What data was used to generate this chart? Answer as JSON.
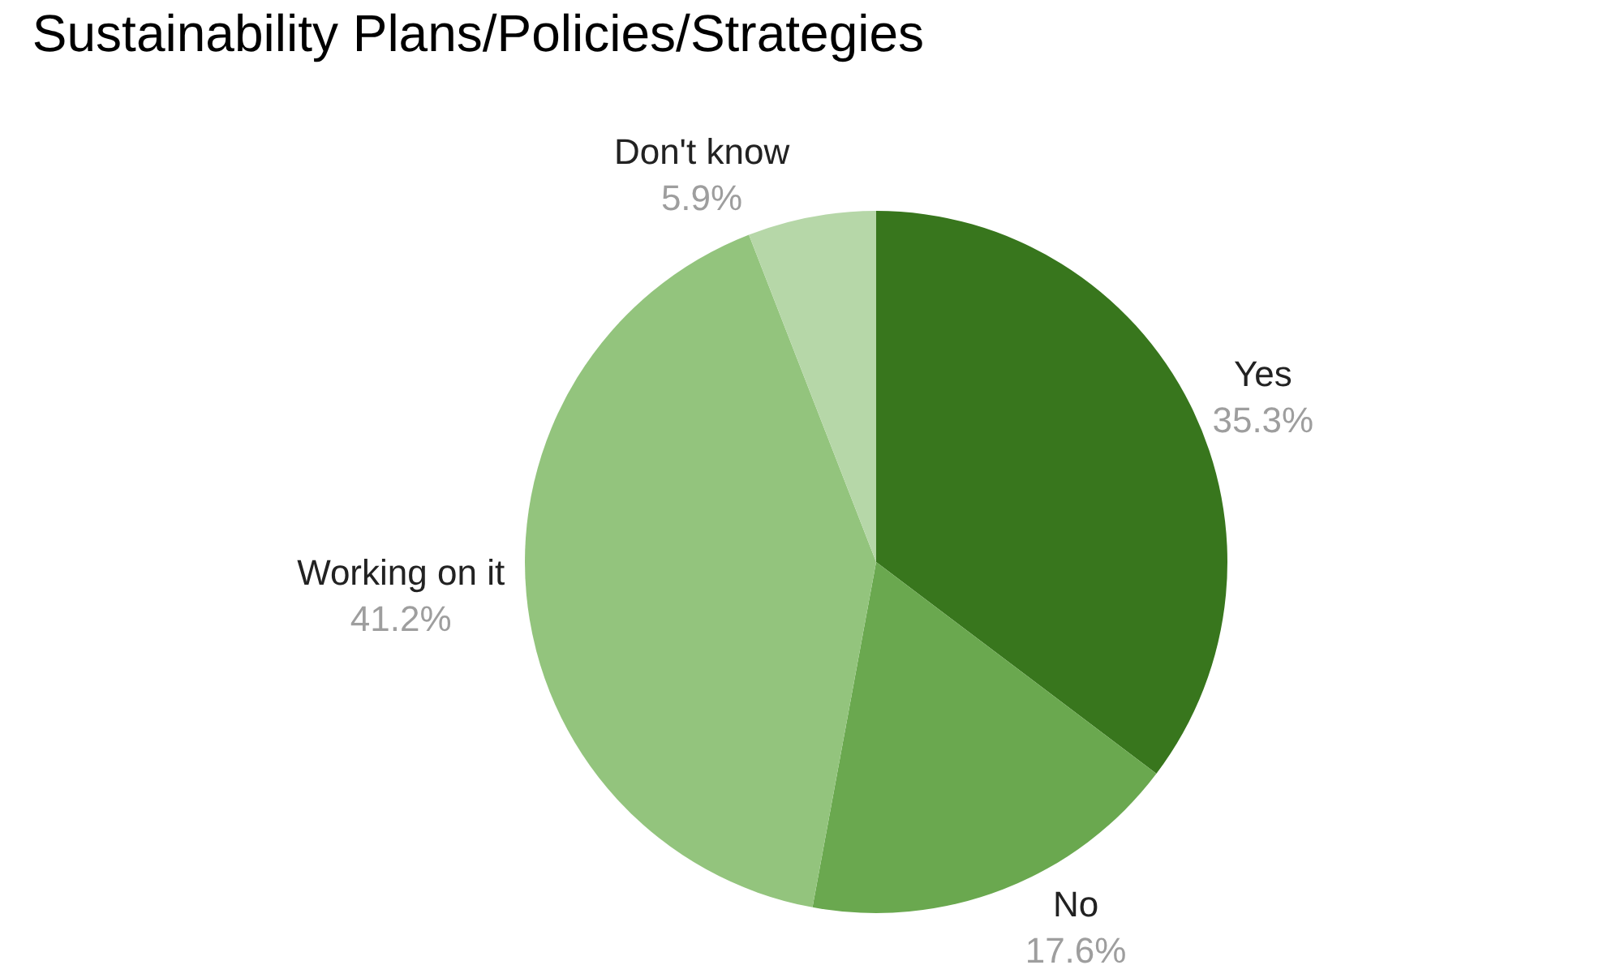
{
  "chart_data": {
    "type": "pie",
    "title": "Sustainability Plans/Policies/Strategies",
    "categories": [
      "Yes",
      "No",
      "Working on it",
      "Don't know"
    ],
    "values": [
      35.3,
      17.6,
      41.2,
      5.9
    ],
    "value_labels": [
      "35.3%",
      "17.6%",
      "41.2%",
      "5.9%"
    ],
    "colors": [
      "#38761d",
      "#6aa84f",
      "#93c47d",
      "#b6d7a8"
    ],
    "legend": false
  }
}
